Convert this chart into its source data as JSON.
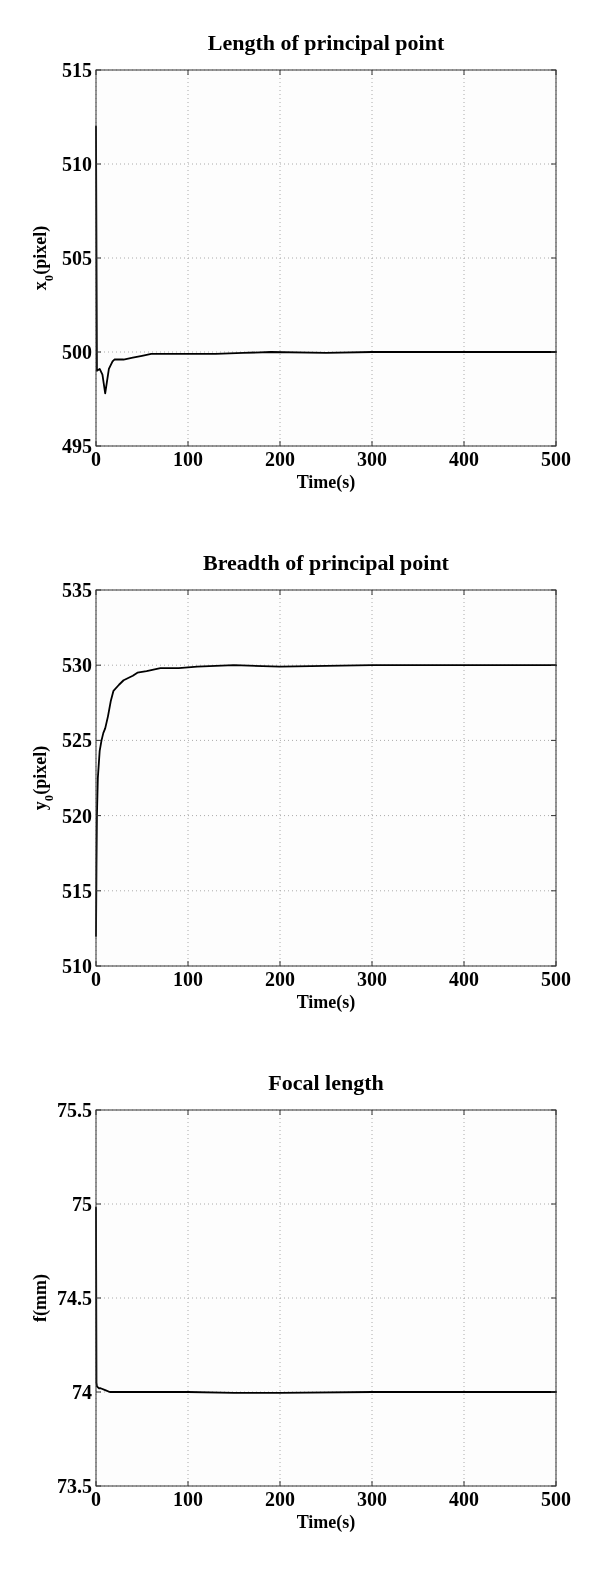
{
  "chart_data": [
    {
      "type": "line",
      "title": "Length of principal point",
      "xlabel": "Time(s)",
      "ylabel": "x$_{0}$(pixel)",
      "xlim": [
        0,
        500
      ],
      "xticks": [
        0,
        100,
        200,
        300,
        400,
        500
      ],
      "ylim": [
        495,
        515
      ],
      "yticks": [
        495,
        500,
        505,
        510,
        515
      ],
      "grid": true,
      "line_style": "solid",
      "series": [
        {
          "color": "#000000",
          "x": [
            0,
            1,
            4,
            7,
            10,
            14,
            18,
            20,
            30,
            40,
            50,
            60,
            80,
            100,
            130,
            160,
            190,
            250,
            300,
            400,
            500
          ],
          "values": [
            512,
            499,
            499.1,
            498.8,
            497.8,
            499.1,
            499.5,
            499.6,
            499.6,
            499.7,
            499.8,
            499.9,
            499.9,
            499.9,
            499.9,
            499.95,
            500,
            499.95,
            500,
            500,
            500
          ]
        }
      ]
    },
    {
      "type": "line",
      "title": "Breadth of principal point",
      "xlabel": "Time(s)",
      "ylabel": "y$_{0}$(pixel)",
      "xlim": [
        0,
        500
      ],
      "xticks": [
        0,
        100,
        200,
        300,
        400,
        500
      ],
      "ylim": [
        510,
        535
      ],
      "yticks": [
        510,
        515,
        520,
        525,
        530,
        535
      ],
      "grid": true,
      "line_style": "solid",
      "series": [
        {
          "color": "#000000",
          "x": [
            0,
            0.5,
            1,
            2,
            4,
            6,
            8,
            10,
            13,
            16,
            19,
            25,
            30,
            40,
            45,
            55,
            70,
            90,
            110,
            150,
            200,
            250,
            300,
            400,
            500
          ],
          "values": [
            512,
            516.5,
            520,
            522.5,
            524.3,
            525,
            525.5,
            525.8,
            526.6,
            527.6,
            528.3,
            528.7,
            529,
            529.3,
            529.5,
            529.6,
            529.8,
            529.8,
            529.9,
            530,
            529.9,
            529.95,
            530,
            530,
            530
          ]
        }
      ]
    },
    {
      "type": "line",
      "title": "Focal length",
      "xlabel": "Time(s)",
      "ylabel": "f(mm)",
      "xlim": [
        0,
        500
      ],
      "xticks": [
        0,
        100,
        200,
        300,
        400,
        500
      ],
      "ylim": [
        73.5,
        75.5
      ],
      "yticks": [
        73.5,
        75,
        74.5,
        74,
        {
          "value": 75.5,
          "label": "75.5"
        }
      ],
      "grid": true,
      "line_style": "solid",
      "series": [
        {
          "color": "#000000",
          "x": [
            0,
            0.5,
            1,
            3,
            5,
            10,
            15,
            40,
            100,
            150,
            200,
            300,
            400,
            500
          ],
          "values": [
            74.98,
            74.05,
            74.03,
            74.02,
            74.02,
            74.01,
            74,
            74,
            74,
            73.995,
            73.995,
            74,
            74,
            74
          ]
        }
      ]
    }
  ]
}
